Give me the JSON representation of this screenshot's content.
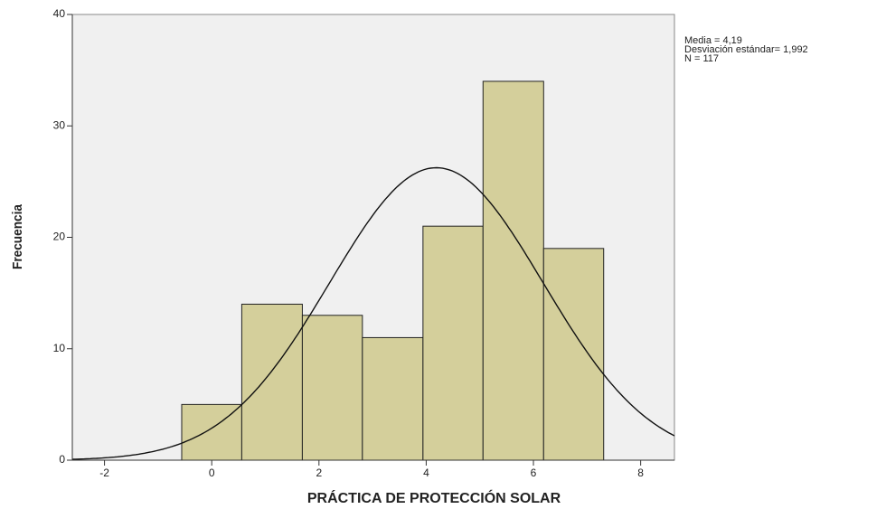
{
  "chart_data": {
    "type": "histogram",
    "xlabel": "PRÁCTICA DE PROTECCIÓN SOLAR",
    "ylabel": "Frecuencia",
    "bins": [
      -0.56,
      0.56,
      1.69,
      2.81,
      3.94,
      5.06,
      6.19,
      7.31
    ],
    "values": [
      5,
      14,
      13,
      11,
      21,
      34,
      19
    ],
    "color": "#d4cf9b",
    "xlim": [
      -2.6,
      8.63
    ],
    "xticks": [
      -2,
      0,
      2,
      4,
      6,
      8
    ],
    "ylim": [
      0,
      40
    ],
    "yticks": [
      0,
      10,
      20,
      30,
      40
    ],
    "stats": {
      "mean": 4.19,
      "sd": 1.992,
      "n": 117
    },
    "stat_labels": [
      "Media = 4,19",
      "Desviación estándar= 1,992",
      "N = 117"
    ]
  }
}
